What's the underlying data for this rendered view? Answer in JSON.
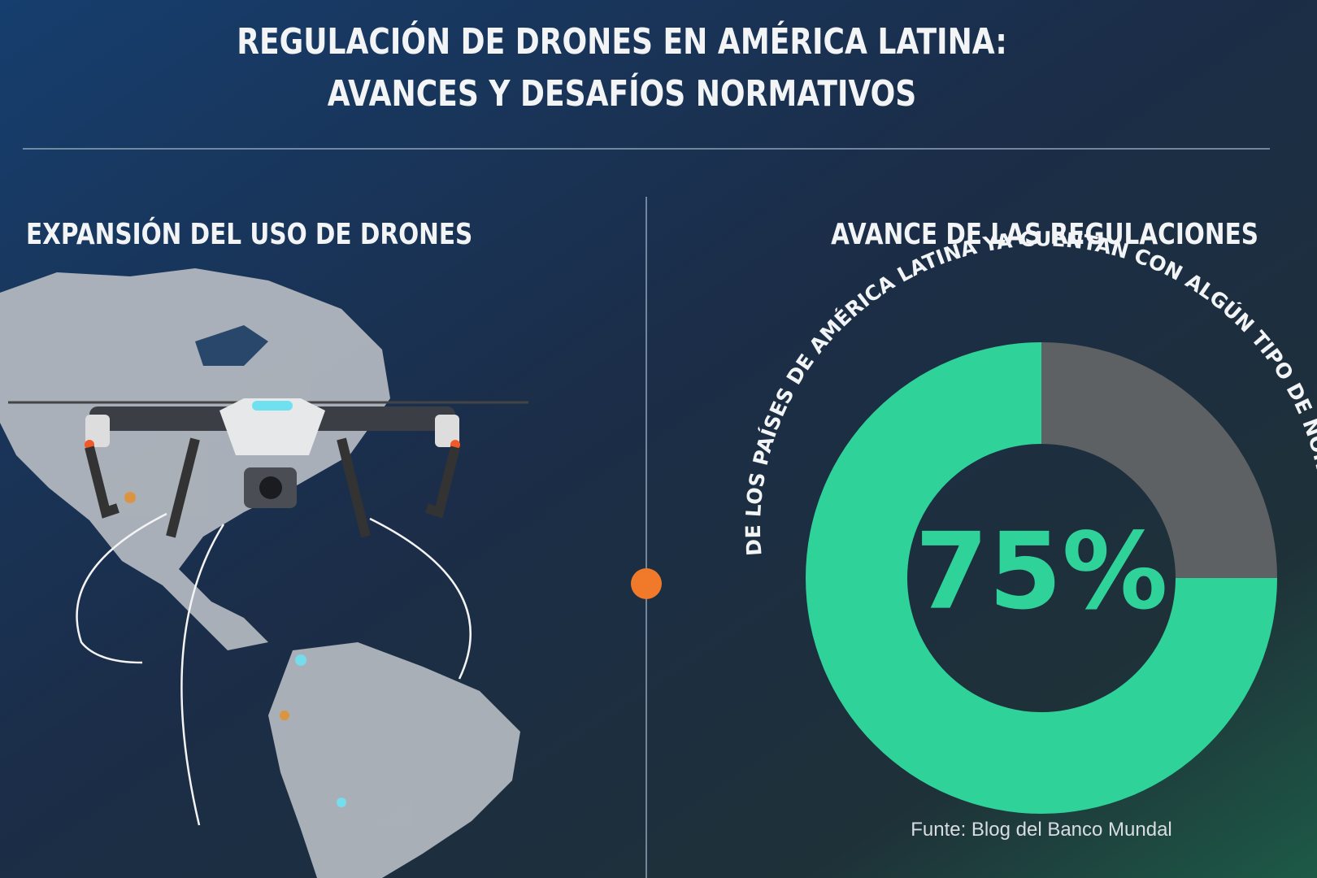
{
  "header": {
    "title": [
      "REGULACIÓN DE DRONES EN AMÉRICA LATINA:",
      "AVANCES Y DESAFÍOS NORMATIVOS"
    ]
  },
  "left_panel": {
    "heading": "EXPANSIÓN DEL USO DE DRONES"
  },
  "chart_data": {
    "type": "donut",
    "title": "AVANCE DE LAS REGULACIONES",
    "subtitle": "DE LOS PAÍSES DE AMÉRICA LATINA YA CUENTAN CON ALGÚN TIPO DE NORMATIVA",
    "values": [
      75,
      25
    ],
    "value_labels": [
      "75%",
      null
    ],
    "colors": [
      "#2fd39a",
      "#5e6163"
    ],
    "source": "Funte: Blog del Banco Mundal"
  }
}
